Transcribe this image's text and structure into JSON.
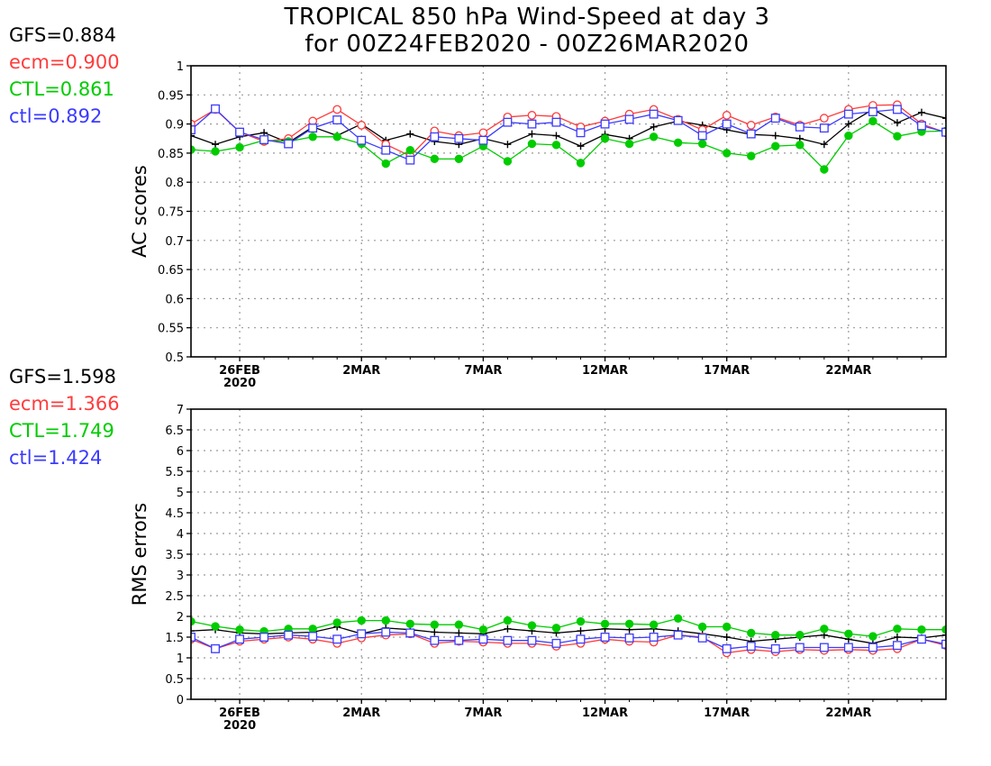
{
  "title": {
    "line1": "TROPICAL 850 hPa Wind-Speed at day 3",
    "line2": "for 00Z24FEB2020 - 00Z26MAR2020"
  },
  "colors": {
    "GFS": "#000000",
    "ecm": "#ff3b3b",
    "CTL": "#00cc00",
    "ctl": "#3b3bff"
  },
  "chart_data": [
    {
      "type": "line",
      "ylabel": "AC scores",
      "ylim": [
        0.5,
        1.0
      ],
      "yticks": [
        "0.5",
        "0.55",
        "0.6",
        "0.65",
        "0.7",
        "0.75",
        "0.8",
        "0.85",
        "0.9",
        "0.95",
        "1"
      ],
      "xticks": [
        {
          "label": "26FEB",
          "sub": "2020",
          "day": 2
        },
        {
          "label": "2MAR",
          "sub": "",
          "day": 7
        },
        {
          "label": "7MAR",
          "sub": "",
          "day": 12
        },
        {
          "label": "12MAR",
          "sub": "",
          "day": 17
        },
        {
          "label": "17MAR",
          "sub": "",
          "day": 22
        },
        {
          "label": "22MAR",
          "sub": "",
          "day": 27
        }
      ],
      "xrange": [
        0,
        31
      ],
      "grid": true,
      "legend": [
        {
          "text": "GFS=0.884",
          "series": "GFS"
        },
        {
          "text": "ecm=0.900",
          "series": "ecm"
        },
        {
          "text": "CTL=0.861",
          "series": "CTL"
        },
        {
          "text": "ctl=0.892",
          "series": "ctl"
        }
      ],
      "series": [
        {
          "key": "GFS",
          "marker": "plus",
          "values": [
            0.88,
            0.865,
            0.878,
            0.885,
            0.868,
            0.895,
            0.88,
            0.9,
            0.872,
            0.883,
            0.87,
            0.865,
            0.875,
            0.865,
            0.883,
            0.88,
            0.862,
            0.882,
            0.875,
            0.895,
            0.905,
            0.898,
            0.89,
            0.882,
            0.88,
            0.875,
            0.865,
            0.9,
            0.925,
            0.902,
            0.92,
            0.91
          ]
        },
        {
          "key": "ecm",
          "marker": "circle",
          "values": [
            0.9,
            0.925,
            0.886,
            0.87,
            0.875,
            0.905,
            0.925,
            0.898,
            0.865,
            0.845,
            0.888,
            0.88,
            0.885,
            0.912,
            0.915,
            0.913,
            0.895,
            0.905,
            0.917,
            0.925,
            0.908,
            0.89,
            0.915,
            0.898,
            0.912,
            0.898,
            0.91,
            0.925,
            0.932,
            0.933,
            0.9,
            0.885
          ]
        },
        {
          "key": "CTL",
          "marker": "dot",
          "values": [
            0.856,
            0.853,
            0.86,
            0.872,
            0.87,
            0.878,
            0.878,
            0.866,
            0.832,
            0.855,
            0.84,
            0.84,
            0.862,
            0.836,
            0.866,
            0.864,
            0.833,
            0.875,
            0.866,
            0.878,
            0.868,
            0.866,
            0.85,
            0.845,
            0.862,
            0.864,
            0.822,
            0.88,
            0.905,
            0.879,
            0.887,
            0.888
          ]
        },
        {
          "key": "ctl",
          "marker": "square",
          "values": [
            0.89,
            0.926,
            0.886,
            0.873,
            0.866,
            0.893,
            0.907,
            0.872,
            0.855,
            0.838,
            0.878,
            0.875,
            0.872,
            0.903,
            0.9,
            0.903,
            0.885,
            0.9,
            0.908,
            0.917,
            0.906,
            0.88,
            0.9,
            0.883,
            0.91,
            0.895,
            0.893,
            0.917,
            0.921,
            0.925,
            0.897,
            0.886
          ]
        }
      ]
    },
    {
      "type": "line",
      "ylabel": "RMS errors",
      "ylim": [
        0,
        7
      ],
      "yticks": [
        "0",
        "0.5",
        "1",
        "1.5",
        "2",
        "2.5",
        "3",
        "3.5",
        "4",
        "4.5",
        "5",
        "5.5",
        "6",
        "6.5",
        "7"
      ],
      "xticks": [
        {
          "label": "26FEB",
          "sub": "2020",
          "day": 2
        },
        {
          "label": "2MAR",
          "sub": "",
          "day": 7
        },
        {
          "label": "7MAR",
          "sub": "",
          "day": 12
        },
        {
          "label": "12MAR",
          "sub": "",
          "day": 17
        },
        {
          "label": "17MAR",
          "sub": "",
          "day": 22
        },
        {
          "label": "22MAR",
          "sub": "",
          "day": 27
        }
      ],
      "xrange": [
        0,
        31
      ],
      "grid": true,
      "legend": [
        {
          "text": "GFS=1.598",
          "series": "GFS"
        },
        {
          "text": "ecm=1.366",
          "series": "ecm"
        },
        {
          "text": "CTL=1.749",
          "series": "CTL"
        },
        {
          "text": "ctl=1.424",
          "series": "ctl"
        }
      ],
      "series": [
        {
          "key": "GFS",
          "marker": "plus",
          "values": [
            1.65,
            1.68,
            1.6,
            1.58,
            1.6,
            1.62,
            1.75,
            1.58,
            1.72,
            1.68,
            1.62,
            1.6,
            1.58,
            1.7,
            1.65,
            1.6,
            1.65,
            1.7,
            1.68,
            1.7,
            1.65,
            1.58,
            1.5,
            1.4,
            1.45,
            1.5,
            1.55,
            1.45,
            1.35,
            1.5,
            1.48,
            1.55
          ]
        },
        {
          "key": "ecm",
          "marker": "circle",
          "values": [
            1.45,
            1.22,
            1.4,
            1.45,
            1.5,
            1.45,
            1.35,
            1.48,
            1.55,
            1.58,
            1.35,
            1.4,
            1.38,
            1.35,
            1.35,
            1.28,
            1.35,
            1.45,
            1.4,
            1.38,
            1.55,
            1.5,
            1.12,
            1.2,
            1.15,
            1.2,
            1.18,
            1.2,
            1.18,
            1.22,
            1.45,
            1.3
          ]
        },
        {
          "key": "CTL",
          "marker": "dot",
          "values": [
            1.88,
            1.76,
            1.68,
            1.64,
            1.7,
            1.7,
            1.85,
            1.9,
            1.9,
            1.82,
            1.8,
            1.8,
            1.68,
            1.9,
            1.78,
            1.72,
            1.88,
            1.82,
            1.82,
            1.8,
            1.95,
            1.75,
            1.75,
            1.6,
            1.55,
            1.55,
            1.7,
            1.58,
            1.52,
            1.7,
            1.68,
            1.68
          ]
        },
        {
          "key": "ctl",
          "marker": "square",
          "values": [
            1.5,
            1.22,
            1.45,
            1.5,
            1.55,
            1.52,
            1.45,
            1.58,
            1.62,
            1.6,
            1.42,
            1.42,
            1.45,
            1.42,
            1.42,
            1.35,
            1.45,
            1.5,
            1.48,
            1.5,
            1.55,
            1.48,
            1.22,
            1.28,
            1.22,
            1.25,
            1.25,
            1.25,
            1.25,
            1.3,
            1.45,
            1.33
          ]
        }
      ]
    }
  ]
}
